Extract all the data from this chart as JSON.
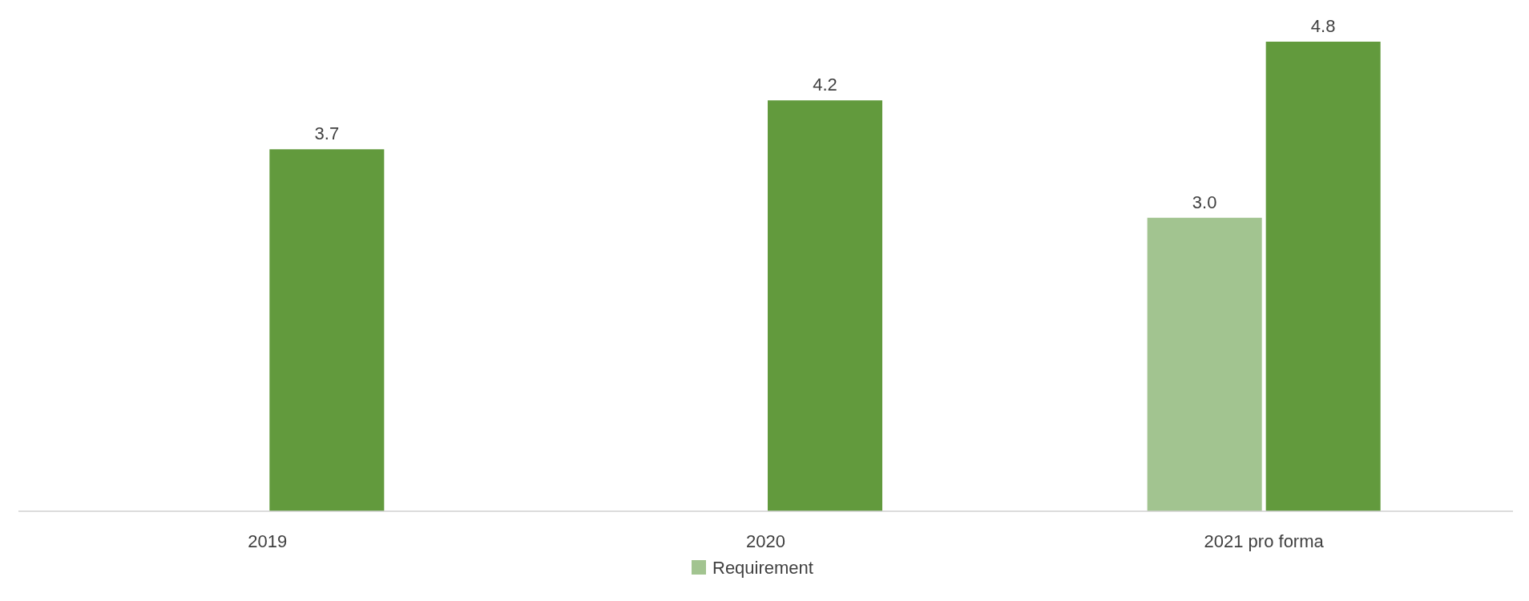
{
  "chart_data": {
    "type": "bar",
    "categories": [
      "2019",
      "2020",
      "2021 pro forma"
    ],
    "series": [
      {
        "name": "Requirement",
        "color": "#a2c490",
        "values": [
          null,
          null,
          3.0
        ],
        "value_labels": [
          null,
          null,
          "3.0"
        ]
      },
      {
        "color": "#629a3d",
        "values": [
          3.7,
          4.2,
          4.8
        ],
        "value_labels": [
          "3.7",
          "4.2",
          "4.8"
        ]
      }
    ],
    "tick_labels": "x",
    "legend": "bottom"
  }
}
